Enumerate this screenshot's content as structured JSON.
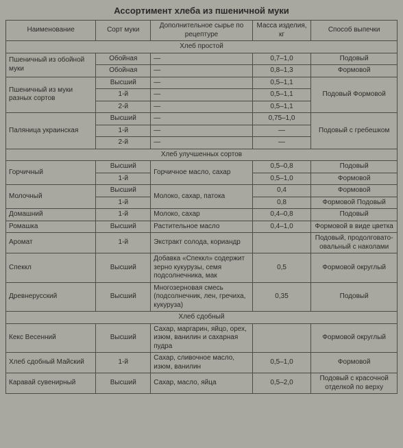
{
  "title": "Ассортимент хлеба из пшеничной муки",
  "columns": [
    "Наименование",
    "Сорт муки",
    "Дополнительное сырье по рецептуре",
    "Масса изделия, кг",
    "Способ выпечки"
  ],
  "background_color": "#a8a8a0",
  "border_color": "#4a4a46",
  "text_color": "#2a2a28",
  "title_fontsize": 13,
  "body_fontsize": 10,
  "col_widths_pct": [
    23,
    14,
    26,
    15,
    22
  ],
  "sections": [
    {
      "header": "Хлеб простой",
      "rows": [
        {
          "name": "Пшеничный из обойной муки",
          "name_rs": 2,
          "grade": "Обойная",
          "extra": "—",
          "mass": "0,7–1,0",
          "method": "Подовый"
        },
        {
          "grade": "Обойная",
          "extra": "—",
          "mass": "0,8–1,3",
          "method": "Формовой"
        },
        {
          "name": "Пшеничный из муки разных сортов",
          "name_rs": 3,
          "grade": "Высший",
          "extra": "—",
          "mass": "0,5–1,1",
          "method": "Подовый Формовой",
          "method_rs": 3
        },
        {
          "grade": "1-й",
          "extra": "—",
          "mass": "0,5–1,1"
        },
        {
          "grade": "2-й",
          "extra": "—",
          "mass": "0,5–1,1"
        },
        {
          "name": "Паляница украинская",
          "name_rs": 3,
          "grade": "Высший",
          "extra": "—",
          "mass": "0,75–1,0",
          "method": "Подовый с гребешком",
          "method_rs": 3
        },
        {
          "grade": "1-й",
          "extra": "—",
          "mass": "—"
        },
        {
          "grade": "2-й",
          "extra": "—",
          "mass": "—"
        }
      ]
    },
    {
      "header": "Хлеб улучшенных сортов",
      "rows": [
        {
          "name": "Горчичный",
          "name_rs": 2,
          "grade": "Высший",
          "extra": "Горчичное масло, сахар",
          "extra_rs": 2,
          "mass": "0,5–0,8",
          "method": "Подовый"
        },
        {
          "grade": "1-й",
          "mass": "0,5–1,0",
          "method": "Формовой"
        },
        {
          "name": "Молочный",
          "name_rs": 2,
          "grade": "Высший",
          "extra": "Молоко, сахар, патока",
          "extra_rs": 2,
          "mass": "0,4",
          "method": "Формовой"
        },
        {
          "grade": "1-й",
          "mass": "0,8",
          "method": "Формовой Подовый"
        },
        {
          "name": "Домашний",
          "grade": "1-й",
          "extra": "Молоко, сахар",
          "mass": "0,4–0,8",
          "method": "Подовый"
        },
        {
          "name": "Ромашка",
          "grade": "Высший",
          "extra": "Растительное масло",
          "mass": "0,4–1,0",
          "method": "Формовой в виде цветка"
        },
        {
          "name": "Аромат",
          "grade": "1-й",
          "extra": "Экстракт солода, кориандр",
          "mass": "",
          "method": "Подовый, продолговато-овальный с наколами"
        },
        {
          "name": "Спеккл",
          "grade": "Высший",
          "extra": "Добавка «Спеккл» содержит зерно кукурузы, семя подсолнечника, мак",
          "mass": "0,5",
          "method": "Формовой округлый"
        },
        {
          "name": "Древнерусский",
          "grade": "Высший",
          "extra": "Многозерновая смесь (подсолнечник, лен, гречиха, кукуруза)",
          "mass": "0,35",
          "method": "Подовый"
        }
      ]
    },
    {
      "header": "Хлеб сдобный",
      "rows": [
        {
          "name": "Кекс Весенний",
          "grade": "Высший",
          "extra": "Сахар, маргарин, яйцо, орех, изюм, ванилин и сахарная пудра",
          "mass": "",
          "method": "Формовой округлый"
        },
        {
          "name": "Хлеб сдобный Майский",
          "grade": "1-й",
          "extra": "Сахар, сливочное масло, изюм, ванилин",
          "mass": "0,5–1,0",
          "method": "Формовой"
        },
        {
          "name": "Каравай сувенирный",
          "grade": "Высший",
          "extra": "Сахар, масло, яйца",
          "mass": "0,5–2,0",
          "method": "Подовый с красочной отделкой по верху"
        }
      ]
    }
  ]
}
